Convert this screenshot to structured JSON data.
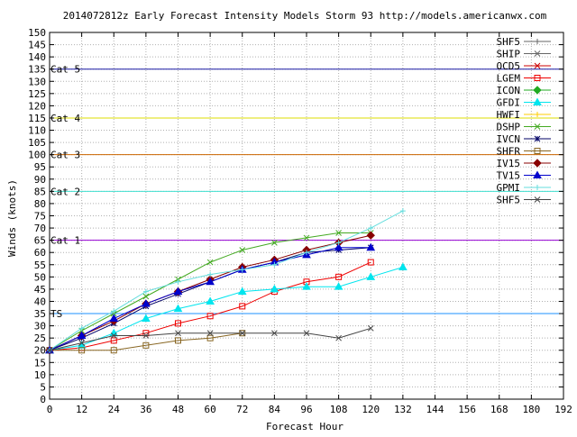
{
  "chart_data": {
    "type": "line",
    "title": "2014072812z Early Forecast Intensity Models Storm 93 http://models.americanwx.com",
    "xlabel": "Forecast Hour",
    "ylabel": "Winds (knots)",
    "xlim": [
      0,
      192
    ],
    "ylim": [
      0,
      150
    ],
    "x_ticks": [
      0,
      12,
      24,
      36,
      48,
      60,
      72,
      84,
      96,
      108,
      120,
      132,
      144,
      156,
      168,
      180,
      192
    ],
    "y_ticks": [
      0,
      5,
      10,
      15,
      20,
      25,
      30,
      35,
      40,
      45,
      50,
      55,
      60,
      65,
      70,
      75,
      80,
      85,
      90,
      95,
      100,
      105,
      110,
      115,
      120,
      125,
      130,
      135,
      140,
      145,
      150
    ],
    "grid": true,
    "legend_position": "top-right",
    "reference_lines": [
      {
        "label": "TS",
        "value": 35,
        "color": "#1e90ff"
      },
      {
        "label": "Cat 1",
        "value": 65,
        "color": "#9400d3"
      },
      {
        "label": "Cat 2",
        "value": 85,
        "color": "#40e0d0"
      },
      {
        "label": "Cat 3",
        "value": 100,
        "color": "#cc6600"
      },
      {
        "label": "Cat 4",
        "value": 115,
        "color": "#dddd00"
      },
      {
        "label": "Cat 5",
        "value": 135,
        "color": "#1a1aa6"
      }
    ],
    "series": [
      {
        "name": "SHF5",
        "color": "#666666",
        "marker": "plus",
        "x": [],
        "y": []
      },
      {
        "name": "SHIP",
        "color": "#666666",
        "marker": "x",
        "x": [],
        "y": []
      },
      {
        "name": "OCD5",
        "color": "#cc0000",
        "marker": "x",
        "x": [],
        "y": []
      },
      {
        "name": "LGEM",
        "color": "#ee0000",
        "marker": "square",
        "x": [
          0,
          12,
          24,
          36,
          48,
          60,
          72,
          84,
          96,
          108,
          120
        ],
        "y": [
          20,
          21,
          24,
          27,
          31,
          34,
          38,
          44,
          48,
          50,
          56
        ]
      },
      {
        "name": "ICON",
        "color": "#22aa22",
        "marker": "diamond",
        "x": [],
        "y": []
      },
      {
        "name": "GFDI",
        "color": "#00e5ee",
        "marker": "triangle",
        "x": [
          0,
          12,
          24,
          36,
          48,
          60,
          72,
          84,
          96,
          108,
          120,
          132
        ],
        "y": [
          20,
          22,
          27,
          33,
          37,
          40,
          44,
          45,
          46,
          46,
          50,
          54
        ]
      },
      {
        "name": "HWFI",
        "color": "#ffcc00",
        "marker": "plus",
        "x": [],
        "y": []
      },
      {
        "name": "DSHP",
        "color": "#44aa22",
        "marker": "x",
        "x": [
          0,
          12,
          24,
          36,
          48,
          60,
          72,
          84,
          96,
          108,
          120
        ],
        "y": [
          20,
          28,
          35,
          42,
          49,
          56,
          61,
          64,
          66,
          68,
          68
        ]
      },
      {
        "name": "IVCN",
        "color": "#000066",
        "marker": "star",
        "x": [
          0,
          12,
          24,
          36,
          48,
          60,
          72,
          84,
          96,
          108,
          120
        ],
        "y": [
          20,
          25,
          31,
          38,
          43,
          48,
          53,
          56,
          60,
          61,
          62
        ]
      },
      {
        "name": "SHFR",
        "color": "#886622",
        "marker": "square",
        "x": [
          0,
          12,
          24,
          36,
          48,
          60,
          72
        ],
        "y": [
          20,
          20,
          20,
          22,
          24,
          25,
          27
        ]
      },
      {
        "name": "IV15",
        "color": "#880000",
        "marker": "diamond",
        "x": [
          0,
          12,
          24,
          36,
          48,
          60,
          72,
          84,
          96,
          108,
          120
        ],
        "y": [
          20,
          26,
          32,
          39,
          44,
          49,
          54,
          57,
          61,
          64,
          67
        ]
      },
      {
        "name": "TV15",
        "color": "#0000cc",
        "marker": "triangle",
        "x": [
          0,
          12,
          24,
          36,
          48,
          60,
          72,
          84,
          96,
          108,
          120
        ],
        "y": [
          20,
          26,
          33,
          39,
          44,
          48,
          53,
          56,
          59,
          62,
          62
        ]
      },
      {
        "name": "GPMI",
        "color": "#66dddd",
        "marker": "plus",
        "x": [
          0,
          12,
          24,
          36,
          48,
          60,
          72,
          84,
          96,
          108,
          120,
          132
        ],
        "y": [
          20,
          29,
          36,
          44,
          48,
          51,
          53,
          55,
          60,
          64,
          70,
          77
        ]
      },
      {
        "name": "SHF5",
        "color": "#444444",
        "marker": "x",
        "x": [
          0,
          12,
          24,
          36,
          48,
          60,
          72,
          84,
          96,
          108,
          120
        ],
        "y": [
          20,
          23,
          26,
          26,
          27,
          27,
          27,
          27,
          27,
          25,
          29
        ]
      }
    ]
  }
}
